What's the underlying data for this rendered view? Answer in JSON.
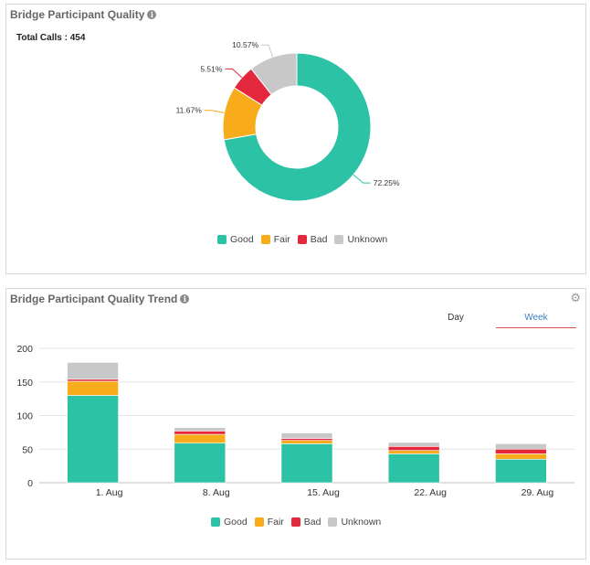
{
  "colors": {
    "good": "#2cc2a5",
    "fair": "#f8ab1b",
    "bad": "#e3283d",
    "unknown": "#c8c8c8"
  },
  "quality_panel": {
    "title": "Bridge Participant Quality",
    "info_icon": "info-icon",
    "total_calls": "Total Calls : 454"
  },
  "trend_panel": {
    "title": "Bridge Participant Quality Trend",
    "info_icon": "info-icon",
    "settings_icon": "gear-icon",
    "tabs": [
      {
        "label": "Day",
        "active": false
      },
      {
        "label": "Week",
        "active": true
      }
    ]
  },
  "chart_data": [
    {
      "type": "pie",
      "donut": true,
      "categories": [
        "Good",
        "Fair",
        "Bad",
        "Unknown"
      ],
      "values": [
        72.25,
        11.67,
        5.51,
        10.57
      ],
      "data_labels": [
        "72.25%",
        "11.67%",
        "5.51%",
        "10.57%"
      ],
      "legend": [
        "Good",
        "Fair",
        "Bad",
        "Unknown"
      ],
      "legend_position": "bottom"
    },
    {
      "type": "bar",
      "stacked": true,
      "categories": [
        "1. Aug",
        "8. Aug",
        "15. Aug",
        "22. Aug",
        "29. Aug"
      ],
      "series": [
        {
          "name": "Good",
          "values": [
            130,
            59,
            58,
            43,
            35
          ]
        },
        {
          "name": "Fair",
          "values": [
            21,
            13,
            5,
            5,
            8
          ]
        },
        {
          "name": "Bad",
          "values": [
            3,
            5,
            3,
            6,
            7
          ]
        },
        {
          "name": "Unknown",
          "values": [
            25,
            5,
            8,
            6,
            8
          ]
        }
      ],
      "ylim": [
        0,
        200
      ],
      "yticks": [
        "0",
        "50",
        "100",
        "150",
        "200"
      ],
      "grid": true,
      "legend": [
        "Good",
        "Fair",
        "Bad",
        "Unknown"
      ],
      "legend_position": "bottom"
    }
  ]
}
